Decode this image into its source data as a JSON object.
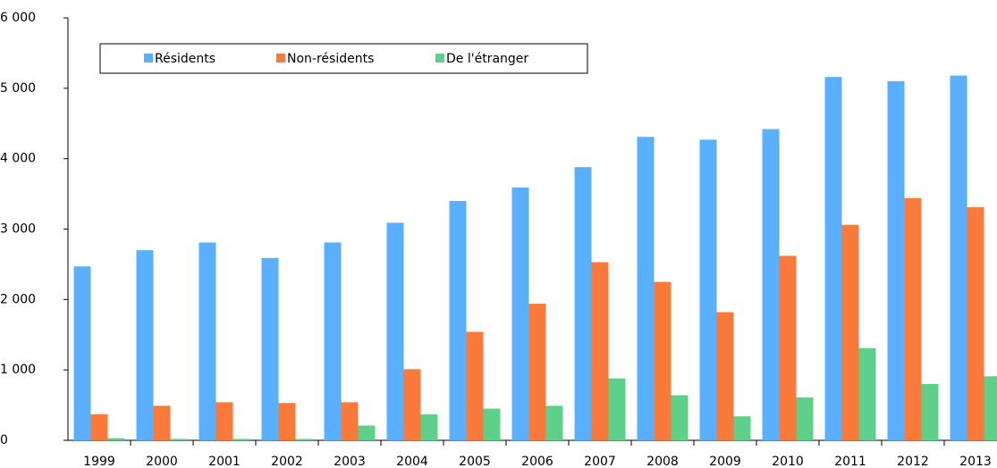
{
  "chart_data": {
    "type": "bar",
    "categories": [
      "1999",
      "2000",
      "2001",
      "2002",
      "2003",
      "2004",
      "2005",
      "2006",
      "2007",
      "2008",
      "2009",
      "2010",
      "2011",
      "2012",
      "2013"
    ],
    "series": [
      {
        "name": "Résidents",
        "color": "#5aafff",
        "values": [
          2470,
          2700,
          2810,
          2590,
          2810,
          3090,
          3400,
          3590,
          3880,
          4310,
          4270,
          4420,
          5160,
          5100,
          5180
        ]
      },
      {
        "name": "Non-résidents",
        "color": "#f97a3a",
        "values": [
          370,
          490,
          540,
          530,
          540,
          1010,
          1540,
          1940,
          2530,
          2250,
          1820,
          2620,
          3060,
          3440,
          3310
        ]
      },
      {
        "name": "De l'étranger",
        "color": "#5fd08a",
        "values": [
          30,
          20,
          20,
          20,
          210,
          370,
          450,
          490,
          880,
          640,
          340,
          610,
          1310,
          800,
          910
        ]
      }
    ],
    "ylim": [
      0,
      6000
    ],
    "yticks": [
      0,
      {
        "value": 1000,
        "label": "1 000"
      },
      {
        "value": 2000,
        "label": "2 000"
      },
      {
        "value": 3000,
        "label": "3 000"
      },
      {
        "value": 4000,
        "label": "4 000"
      },
      {
        "value": 5000,
        "label": "5 000"
      },
      {
        "value": 6000,
        "label": "6 000"
      }
    ],
    "legend": "top-left"
  }
}
